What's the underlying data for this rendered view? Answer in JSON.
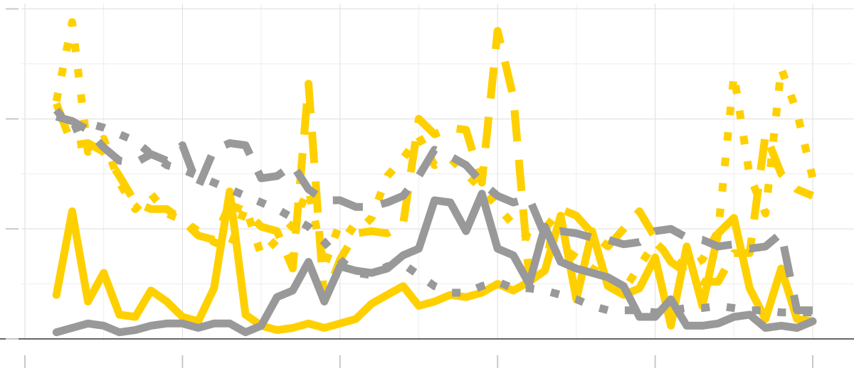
{
  "chart_data": {
    "type": "line",
    "title": "",
    "xlabel": "",
    "ylabel": "",
    "xlim": [
      0,
      50
    ],
    "ylim": [
      0,
      15.5
    ],
    "x_ticks": [
      0,
      10,
      20,
      30,
      40,
      50
    ],
    "y_ticks": [
      0,
      5,
      10,
      15
    ],
    "grid": true,
    "legend": "none",
    "colors": {
      "yellow": "#FFD000",
      "gray": "#999999"
    },
    "series": [
      {
        "name": "yellow-solid",
        "color": "#FFD000",
        "dash": "solid",
        "x": [
          2,
          3,
          4,
          5,
          6,
          7,
          8,
          9,
          10,
          11,
          12,
          13,
          14,
          15,
          16,
          17,
          18,
          19,
          20,
          21,
          22,
          23,
          24,
          25,
          26,
          27,
          28,
          29,
          30,
          31,
          32,
          33,
          34,
          35,
          36,
          37,
          38,
          39,
          40,
          41,
          42,
          43,
          44,
          45,
          46,
          47,
          48,
          49,
          50
        ],
        "values": [
          2.0,
          5.8,
          1.7,
          3.0,
          1.1,
          1.0,
          2.2,
          1.7,
          1.0,
          0.8,
          2.3,
          6.7,
          1.1,
          0.6,
          0.4,
          0.5,
          0.7,
          0.5,
          0.7,
          0.9,
          1.6,
          2.0,
          2.4,
          1.5,
          1.7,
          2.0,
          1.9,
          2.1,
          2.5,
          2.2,
          2.6,
          3.1,
          5.6,
          1.8,
          4.9,
          2.4,
          2.0,
          2.3,
          3.7,
          0.6,
          4.2,
          1.5,
          4.8,
          5.5,
          2.3,
          0.9,
          3.2,
          0.9,
          0.8
        ]
      },
      {
        "name": "yellow-dashed",
        "color": "#FFD000",
        "dash": "long-dash",
        "x": [
          2,
          3,
          4,
          5,
          6,
          7,
          8,
          9,
          10,
          11,
          12,
          13,
          14,
          15,
          16,
          17,
          18,
          19,
          20,
          21,
          22,
          23,
          24,
          25,
          26,
          27,
          28,
          29,
          30,
          31,
          32,
          33,
          34,
          35,
          36,
          37,
          38,
          39,
          40,
          41,
          42,
          43,
          44,
          45,
          46,
          47,
          48,
          49,
          50
        ],
        "values": [
          10.7,
          8.8,
          8.9,
          8.5,
          7.4,
          6.2,
          5.9,
          5.9,
          5.4,
          4.7,
          4.5,
          6.1,
          5.8,
          5.1,
          4.9,
          3.2,
          11.6,
          1.7,
          3.6,
          4.8,
          4.9,
          4.8,
          5.2,
          10.0,
          9.3,
          9.6,
          9.5,
          7.1,
          14.0,
          11.0,
          2.8,
          5.0,
          5.9,
          5.6,
          4.8,
          4.2,
          5.0,
          5.8,
          4.6,
          3.5,
          3.0,
          2.6,
          2.6,
          3.9,
          3.9,
          9.3,
          7.5,
          6.8,
          6.5
        ]
      },
      {
        "name": "yellow-dotted",
        "color": "#FFD000",
        "dash": "dotted",
        "x": [
          2,
          3,
          4,
          5,
          6,
          7,
          8,
          9,
          10,
          11,
          12,
          13,
          14,
          15,
          16,
          17,
          18,
          19,
          20,
          21,
          22,
          23,
          24,
          25,
          26,
          27,
          28,
          29,
          30,
          31,
          32,
          33,
          34,
          35,
          36,
          37,
          38,
          39,
          40,
          41,
          42,
          43,
          44,
          45,
          46,
          47,
          48,
          49,
          50
        ],
        "values": [
          10.8,
          14.4,
          8.5,
          9.1,
          7.1,
          5.9,
          6.6,
          5.7,
          5.4,
          4.9,
          4.4,
          4.1,
          6.0,
          3.8,
          4.5,
          5.2,
          6.8,
          3.3,
          5.3,
          4.8,
          5.5,
          7.4,
          8.2,
          9.2,
          7.9,
          8.2,
          7.5,
          6.8,
          6.0,
          5.2,
          4.6,
          4.3,
          4.2,
          3.7,
          3.2,
          2.8,
          2.2,
          3.3,
          4.4,
          3.7,
          3.2,
          3.6,
          4.9,
          12.0,
          7.4,
          5.7,
          12.3,
          10.3,
          7.3
        ]
      },
      {
        "name": "gray-solid",
        "color": "#999999",
        "dash": "solid",
        "x": [
          2,
          3,
          4,
          5,
          6,
          7,
          8,
          9,
          10,
          11,
          12,
          13,
          14,
          15,
          16,
          17,
          18,
          19,
          20,
          21,
          22,
          23,
          24,
          25,
          26,
          27,
          28,
          29,
          30,
          31,
          32,
          33,
          34,
          35,
          36,
          37,
          38,
          39,
          40,
          41,
          42,
          43,
          44,
          45,
          46,
          47,
          48,
          49,
          50
        ],
        "values": [
          0.3,
          0.5,
          0.7,
          0.6,
          0.3,
          0.4,
          0.6,
          0.7,
          0.7,
          0.5,
          0.7,
          0.7,
          0.3,
          0.6,
          1.9,
          2.2,
          3.5,
          1.7,
          3.3,
          3.1,
          3.0,
          3.2,
          3.8,
          4.1,
          6.3,
          6.2,
          4.9,
          6.6,
          4.1,
          3.8,
          2.5,
          5.1,
          3.5,
          3.2,
          3.0,
          2.8,
          2.4,
          1.0,
          1.0,
          1.8,
          0.6,
          0.6,
          0.7,
          1.0,
          1.1,
          0.5,
          0.6,
          0.5,
          0.8
        ]
      },
      {
        "name": "gray-dashed",
        "color": "#999999",
        "dash": "long-dash",
        "x": [
          2,
          3,
          4,
          5,
          6,
          7,
          8,
          9,
          10,
          11,
          12,
          13,
          14,
          15,
          16,
          17,
          18,
          19,
          20,
          21,
          22,
          23,
          24,
          25,
          26,
          27,
          28,
          29,
          30,
          31,
          32,
          33,
          34,
          35,
          36,
          37,
          38,
          39,
          40,
          41,
          42,
          43,
          44,
          45,
          46,
          47,
          48,
          49,
          50
        ],
        "values": [
          10.1,
          9.9,
          9.5,
          8.7,
          8.1,
          8.0,
          8.4,
          8.1,
          8.8,
          6.9,
          8.6,
          8.9,
          8.8,
          7.3,
          7.4,
          7.9,
          6.8,
          6.3,
          6.3,
          6.0,
          6.0,
          6.2,
          6.5,
          7.4,
          8.6,
          8.3,
          7.9,
          7.1,
          6.5,
          6.2,
          6.4,
          4.7,
          4.9,
          4.8,
          4.6,
          4.5,
          4.3,
          4.4,
          4.9,
          5.0,
          4.6,
          4.5,
          4.2,
          4.3,
          4.1,
          4.2,
          4.8,
          1.3,
          1.3
        ]
      },
      {
        "name": "gray-dotted",
        "color": "#999999",
        "dash": "dotted",
        "x": [
          2,
          3,
          4,
          5,
          6,
          7,
          8,
          9,
          10,
          11,
          12,
          13,
          14,
          15,
          16,
          17,
          18,
          19,
          20,
          21,
          22,
          23,
          24,
          25,
          26,
          27,
          28,
          29,
          30,
          31,
          32,
          33,
          34,
          35,
          36,
          37,
          38,
          39,
          40,
          41,
          42,
          43,
          44,
          45,
          46,
          47,
          48,
          49,
          50
        ],
        "values": [
          10.4,
          9.5,
          9.8,
          9.6,
          9.3,
          9.0,
          8.4,
          7.9,
          7.7,
          7.4,
          7.1,
          6.8,
          6.5,
          6.2,
          5.9,
          5.5,
          5.1,
          4.4,
          3.6,
          3.0,
          2.9,
          3.3,
          3.4,
          2.9,
          2.4,
          2.1,
          2.1,
          2.4,
          2.6,
          2.3,
          2.3,
          2.2,
          2.0,
          1.8,
          1.5,
          1.3,
          1.3,
          1.3,
          1.2,
          1.3,
          1.4,
          1.4,
          1.5,
          1.4,
          1.3,
          1.3,
          1.2,
          1.2,
          1.2
        ]
      }
    ]
  }
}
